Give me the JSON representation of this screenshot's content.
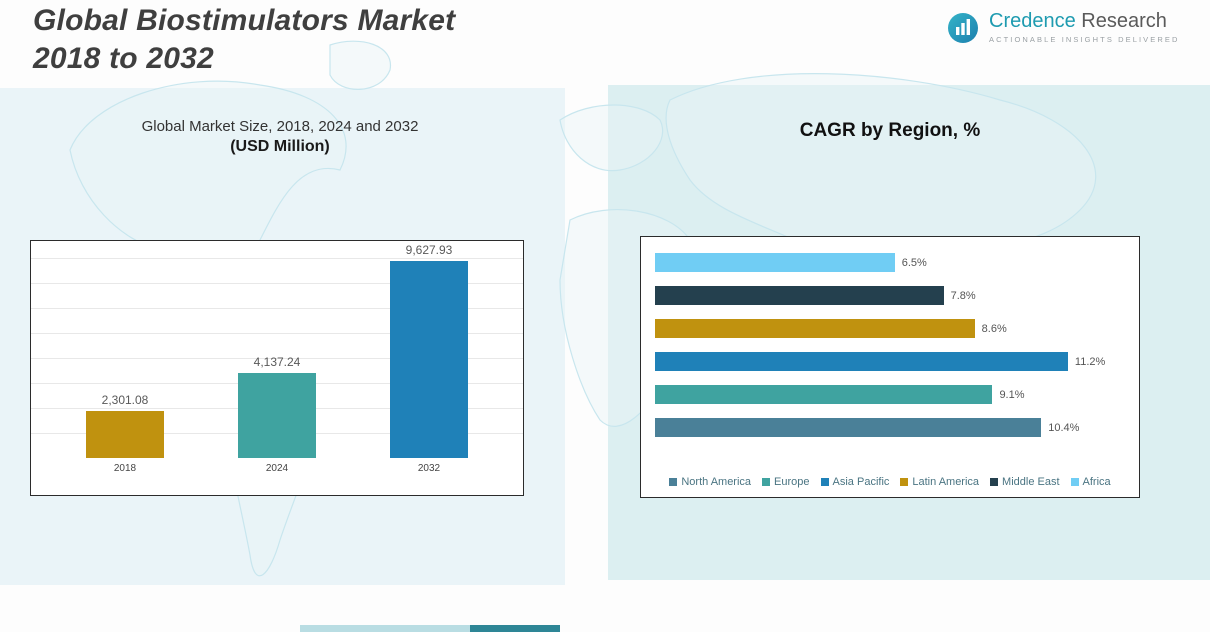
{
  "header": {
    "title_line1": "Global Biostimulators Market",
    "title_line2": "2018 to 2032",
    "logo": {
      "brand_first": "Credence",
      "brand_second": "Research",
      "tagline": "Actionable Insights Delivered",
      "accent_color": "#1e9bb0"
    }
  },
  "chart_data": [
    {
      "type": "bar",
      "title": "Global Market Size, 2018, 2024 and 2032",
      "subtitle": "(USD Million)",
      "categories": [
        "2018",
        "2024",
        "2032"
      ],
      "values": [
        2301.08,
        4137.24,
        9627.93
      ],
      "value_labels": [
        "2,301.08",
        "4,137.24",
        "9,627.93"
      ],
      "bar_colors": [
        "#c0920f",
        "#3fa3a0",
        "#1f81b8"
      ],
      "xlabel": "",
      "ylabel": "",
      "ylim": [
        0,
        10000
      ],
      "grid": true,
      "legend_position": "none"
    },
    {
      "type": "bar",
      "orientation": "horizontal",
      "title": "CAGR by Region, %",
      "bars": [
        {
          "region": "Africa",
          "value": 6.5,
          "label": "6.5%",
          "color": "#70cdf4"
        },
        {
          "region": "Middle East",
          "value": 7.8,
          "label": "7.8%",
          "color": "#24404e"
        },
        {
          "region": "Latin America",
          "value": 8.6,
          "label": "8.6%",
          "color": "#c0920f"
        },
        {
          "region": "Asia Pacific",
          "value": 11.2,
          "label": "11.2%",
          "color": "#1f81b8"
        },
        {
          "region": "Europe",
          "value": 9.1,
          "label": "9.1%",
          "color": "#3fa3a0"
        },
        {
          "region": "North America",
          "value": 10.4,
          "label": "10.4%",
          "color": "#4a8098"
        }
      ],
      "xlim": [
        0,
        12
      ],
      "grid": false,
      "legend_position": "bottom",
      "legend": [
        {
          "label": "North America",
          "color": "#4a8098"
        },
        {
          "label": "Europe",
          "color": "#3fa3a0"
        },
        {
          "label": "Asia Pacific",
          "color": "#1f81b8"
        },
        {
          "label": "Latin America",
          "color": "#c0920f"
        },
        {
          "label": "Middle East",
          "color": "#24404e"
        },
        {
          "label": "Africa",
          "color": "#70cdf4"
        }
      ]
    }
  ]
}
